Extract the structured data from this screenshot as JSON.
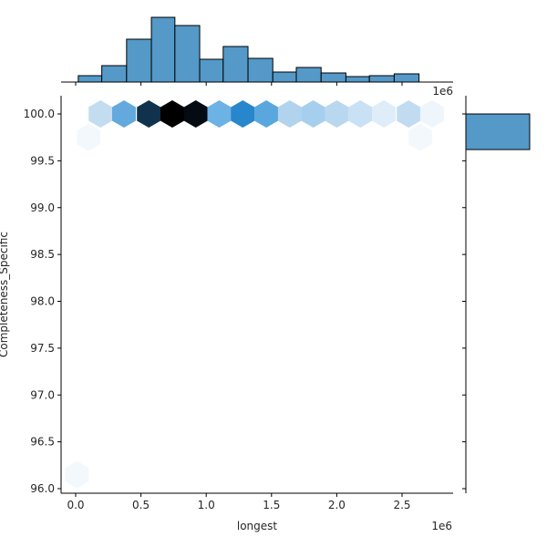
{
  "chart_data": {
    "type": "hexbin",
    "subtype": "jointplot",
    "xlabel": "longest",
    "ylabel": "Completeness_Specific",
    "x_offset_label": "1e6",
    "top_offset_label": "1e6",
    "xlim": [
      -0.11,
      2.9
    ],
    "ylim": [
      95.95,
      100.2
    ],
    "x_ticks": [
      "0.0",
      "0.5",
      "1.0",
      "1.5",
      "2.0",
      "2.5"
    ],
    "x_tick_values": [
      0.0,
      0.5,
      1.0,
      1.5,
      2.0,
      2.5
    ],
    "y_ticks": [
      "96.0",
      "96.5",
      "97.0",
      "97.5",
      "98.0",
      "98.5",
      "99.0",
      "99.5",
      "100.0"
    ],
    "y_tick_values": [
      96.0,
      96.5,
      97.0,
      97.5,
      98.0,
      98.5,
      99.0,
      99.5,
      100.0
    ],
    "hexbins": [
      {
        "x": 0.19,
        "y": 100.0,
        "color": "#c3dcef"
      },
      {
        "x": 0.37,
        "y": 100.0,
        "color": "#63a9de"
      },
      {
        "x": 0.56,
        "y": 100.0,
        "color": "#11324d"
      },
      {
        "x": 0.74,
        "y": 100.0,
        "color": "#000000"
      },
      {
        "x": 0.92,
        "y": 100.0,
        "color": "#050b13"
      },
      {
        "x": 1.1,
        "y": 100.0,
        "color": "#6cb2e4"
      },
      {
        "x": 1.28,
        "y": 100.0,
        "color": "#2886cc"
      },
      {
        "x": 1.46,
        "y": 100.0,
        "color": "#5aa7de"
      },
      {
        "x": 1.64,
        "y": 100.0,
        "color": "#b2d3ee"
      },
      {
        "x": 1.82,
        "y": 100.0,
        "color": "#a6cfee"
      },
      {
        "x": 2.0,
        "y": 100.0,
        "color": "#b9d8f0"
      },
      {
        "x": 2.18,
        "y": 100.0,
        "color": "#c9e1f4"
      },
      {
        "x": 2.36,
        "y": 100.0,
        "color": "#deedf8"
      },
      {
        "x": 2.55,
        "y": 100.0,
        "color": "#c1dcf1"
      },
      {
        "x": 2.73,
        "y": 100.0,
        "color": "#eef5fb"
      },
      {
        "x": 0.1,
        "y": 99.75,
        "color": "#f3f8fd"
      },
      {
        "x": 2.64,
        "y": 99.75,
        "color": "#f3f8fd"
      },
      {
        "x": 0.01,
        "y": 96.15,
        "color": "#f3f8fd"
      }
    ],
    "marginal_x": {
      "type": "histogram",
      "bin_edges": [
        0.02,
        0.2,
        0.39,
        0.58,
        0.76,
        0.95,
        1.13,
        1.32,
        1.51,
        1.69,
        1.88,
        2.07,
        2.25,
        2.44,
        2.63
      ],
      "relative_heights": [
        7,
        18,
        47,
        71,
        62,
        25,
        39,
        26,
        11,
        16,
        10,
        6,
        7,
        9
      ],
      "color": "#5499c7"
    },
    "marginal_y": {
      "type": "histogram",
      "bins": [
        {
          "y_from": 99.62,
          "y_to": 100.0,
          "relative_width": 70
        }
      ],
      "color": "#5499c7"
    }
  },
  "colors": {
    "bar_fill": "#5499c7",
    "bar_edge": "#000000",
    "axis": "#000000",
    "text": "#262626"
  }
}
